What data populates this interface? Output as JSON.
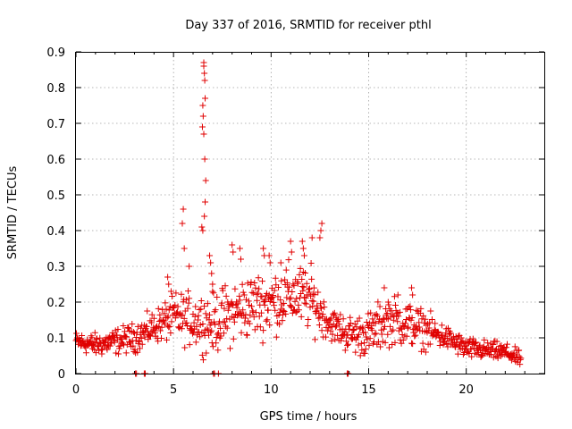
{
  "chart_data": {
    "type": "scatter",
    "title": "Day 337 of 2016, SRMTID for receiver pthl",
    "xlabel": "GPS time / hours",
    "ylabel": "SRMTID / TECUs",
    "xlim": [
      0,
      24
    ],
    "ylim": [
      0,
      0.9
    ],
    "xticks": [
      0,
      5,
      10,
      15,
      20
    ],
    "yticks": [
      0,
      0.1,
      0.2,
      0.3,
      0.4,
      0.5,
      0.6,
      0.7,
      0.8,
      0.9
    ],
    "xtick_labels": [
      "0",
      "5",
      "10",
      "15",
      "20"
    ],
    "ytick_labels": [
      "0",
      "0.1",
      "0.2",
      "0.3",
      "0.4",
      "0.5",
      "0.6",
      "0.7",
      "0.8",
      "0.9"
    ],
    "grid": true,
    "marker": "+",
    "color": "#e00000",
    "series": [
      {
        "name": "SRMTID",
        "profile": [
          [
            0,
            0.09
          ],
          [
            1,
            0.08
          ],
          [
            2,
            0.09
          ],
          [
            3,
            0.1
          ],
          [
            4,
            0.13
          ],
          [
            5,
            0.16
          ],
          [
            6,
            0.15
          ],
          [
            7,
            0.14
          ],
          [
            8,
            0.17
          ],
          [
            9,
            0.19
          ],
          [
            10,
            0.2
          ],
          [
            11,
            0.22
          ],
          [
            12,
            0.21
          ],
          [
            13,
            0.14
          ],
          [
            14,
            0.11
          ],
          [
            15,
            0.11
          ],
          [
            16,
            0.15
          ],
          [
            17,
            0.14
          ],
          [
            18,
            0.12
          ],
          [
            19,
            0.1
          ],
          [
            20,
            0.07
          ],
          [
            21,
            0.065
          ],
          [
            22,
            0.06
          ],
          [
            22.8,
            0.04
          ]
        ],
        "spread_profile": [
          [
            0,
            0.025
          ],
          [
            4,
            0.04
          ],
          [
            5,
            0.06
          ],
          [
            8,
            0.08
          ],
          [
            12,
            0.08
          ],
          [
            13,
            0.04
          ],
          [
            15.5,
            0.06
          ],
          [
            17,
            0.06
          ],
          [
            19,
            0.03
          ],
          [
            22.8,
            0.02
          ]
        ],
        "sample_interval_hours": 0.025,
        "end_hour": 22.8,
        "highlights": [
          {
            "x": 6.55,
            "y": 0.87
          },
          {
            "x": 6.55,
            "y": 0.86
          },
          {
            "x": 6.58,
            "y": 0.84
          },
          {
            "x": 6.6,
            "y": 0.82
          },
          {
            "x": 6.62,
            "y": 0.77
          },
          {
            "x": 6.5,
            "y": 0.75
          },
          {
            "x": 6.52,
            "y": 0.72
          },
          {
            "x": 6.48,
            "y": 0.69
          },
          {
            "x": 6.55,
            "y": 0.67
          },
          {
            "x": 6.6,
            "y": 0.6
          },
          {
            "x": 6.65,
            "y": 0.54
          },
          {
            "x": 6.62,
            "y": 0.48
          },
          {
            "x": 6.58,
            "y": 0.44
          },
          {
            "x": 6.45,
            "y": 0.41
          },
          {
            "x": 6.5,
            "y": 0.4
          },
          {
            "x": 5.5,
            "y": 0.46
          },
          {
            "x": 5.45,
            "y": 0.42
          },
          {
            "x": 5.55,
            "y": 0.35
          },
          {
            "x": 12.6,
            "y": 0.42
          },
          {
            "x": 12.55,
            "y": 0.4
          },
          {
            "x": 12.5,
            "y": 0.38
          },
          {
            "x": 12.1,
            "y": 0.38
          },
          {
            "x": 11.6,
            "y": 0.37
          },
          {
            "x": 11.65,
            "y": 0.35
          },
          {
            "x": 11.7,
            "y": 0.33
          },
          {
            "x": 11.0,
            "y": 0.37
          },
          {
            "x": 11.05,
            "y": 0.34
          },
          {
            "x": 8.0,
            "y": 0.36
          },
          {
            "x": 8.05,
            "y": 0.34
          },
          {
            "x": 8.4,
            "y": 0.35
          },
          {
            "x": 8.45,
            "y": 0.32
          },
          {
            "x": 9.6,
            "y": 0.35
          },
          {
            "x": 9.65,
            "y": 0.33
          },
          {
            "x": 9.9,
            "y": 0.33
          },
          {
            "x": 9.95,
            "y": 0.31
          },
          {
            "x": 10.5,
            "y": 0.31
          },
          {
            "x": 6.85,
            "y": 0.33
          },
          {
            "x": 6.9,
            "y": 0.31
          },
          {
            "x": 6.95,
            "y": 0.28
          },
          {
            "x": 7.0,
            "y": 0.25
          },
          {
            "x": 5.8,
            "y": 0.3
          },
          {
            "x": 4.7,
            "y": 0.27
          },
          {
            "x": 4.75,
            "y": 0.25
          },
          {
            "x": 15.8,
            "y": 0.24
          },
          {
            "x": 16.5,
            "y": 0.22
          },
          {
            "x": 17.2,
            "y": 0.24
          },
          {
            "x": 17.25,
            "y": 0.22
          },
          {
            "x": 16.0,
            "y": 0.2
          },
          {
            "x": 3.05,
            "y": 0.0
          },
          {
            "x": 3.1,
            "y": 0.0
          },
          {
            "x": 3.5,
            "y": 0.0
          },
          {
            "x": 3.55,
            "y": 0.0
          },
          {
            "x": 7.05,
            "y": 0.0
          },
          {
            "x": 7.1,
            "y": 0.0
          },
          {
            "x": 7.3,
            "y": 0.0
          },
          {
            "x": 13.9,
            "y": 0.0
          },
          {
            "x": 13.95,
            "y": 0.0
          }
        ]
      }
    ]
  }
}
